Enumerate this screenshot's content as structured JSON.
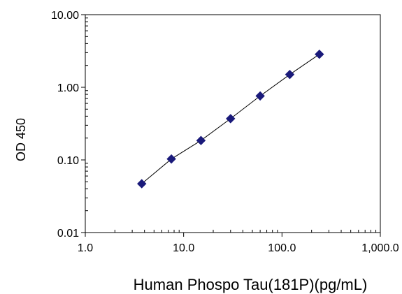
{
  "chart_data": {
    "type": "scatter",
    "title": "",
    "xlabel": "Human Phospo Tau(181P)(pg/mL)",
    "ylabel": "OD 450",
    "x_scale": "log",
    "y_scale": "log",
    "xlim": [
      1,
      1000
    ],
    "ylim": [
      0.01,
      10
    ],
    "x_ticks": [
      {
        "value": 1,
        "label": "1.0"
      },
      {
        "value": 10,
        "label": "10.0"
      },
      {
        "value": 100,
        "label": "100.0"
      },
      {
        "value": 1000,
        "label": "1,000.0"
      }
    ],
    "y_ticks": [
      {
        "value": 0.01,
        "label": "0.01"
      },
      {
        "value": 0.1,
        "label": "0.10"
      },
      {
        "value": 1,
        "label": "1.00"
      },
      {
        "value": 10,
        "label": "10.00"
      }
    ],
    "grid": false,
    "legend": "none",
    "series": [
      {
        "marker": "diamond",
        "color": "#1a1a7a",
        "line_color": "#000000",
        "trendline": true,
        "x": [
          3.75,
          7.5,
          15,
          30,
          60,
          120,
          240
        ],
        "y": [
          0.047,
          0.103,
          0.185,
          0.37,
          0.76,
          1.5,
          2.85
        ]
      }
    ]
  }
}
